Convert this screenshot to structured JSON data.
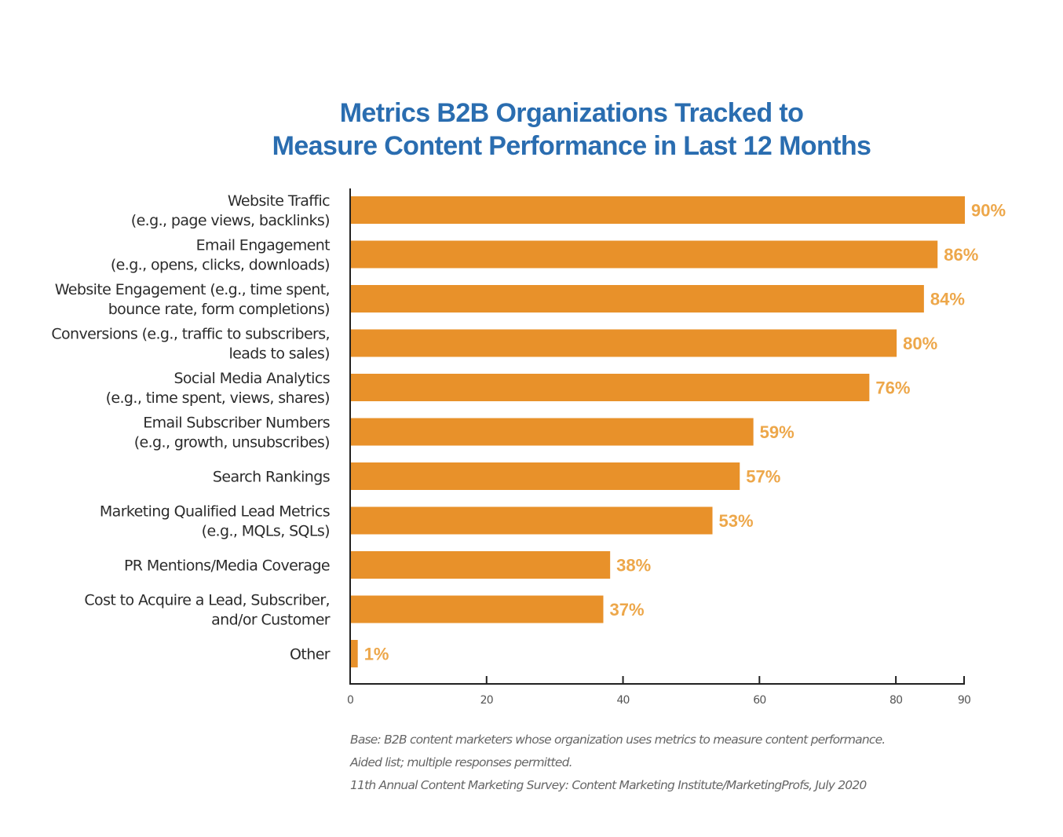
{
  "chart_data": {
    "type": "bar",
    "orientation": "horizontal",
    "title": [
      "Metrics B2B Organizations Tracked to",
      "Measure Content Performance in Last 12 Months"
    ],
    "categories": [
      [
        "Website Traffic",
        "(e.g., page views, backlinks)"
      ],
      [
        "Email Engagement",
        "(e.g., opens, clicks, downloads)"
      ],
      [
        "Website Engagement (e.g., time spent,",
        "bounce rate, form completions)"
      ],
      [
        "Conversions (e.g., traffic to subscribers,",
        "leads to sales)"
      ],
      [
        "Social Media Analytics",
        "(e.g., time spent, views, shares)"
      ],
      [
        "Email Subscriber Numbers",
        "(e.g., growth, unsubscribes)"
      ],
      [
        "Search Rankings"
      ],
      [
        "Marketing Qualified Lead Metrics",
        "(e.g., MQLs, SQLs)"
      ],
      [
        "PR Mentions/Media Coverage"
      ],
      [
        "Cost to Acquire a Lead, Subscriber,",
        "and/or Customer"
      ],
      [
        "Other"
      ]
    ],
    "values": [
      90,
      86,
      84,
      80,
      76,
      59,
      57,
      53,
      38,
      37,
      1
    ],
    "value_labels": [
      "90%",
      "86%",
      "84%",
      "80%",
      "76%",
      "59%",
      "57%",
      "53%",
      "38%",
      "37%",
      "1%"
    ],
    "xlabel": "",
    "ylabel": "",
    "xlim": [
      0,
      90
    ],
    "x_ticks": [
      0,
      20,
      40,
      60,
      80,
      90
    ],
    "x_tick_labels": [
      "0",
      "20",
      "40",
      "60",
      "80",
      "90"
    ],
    "grid": false,
    "legend": "none",
    "colors": {
      "bar": "#e8912a",
      "value_label": "#eda74a",
      "title": "#2a6db0",
      "axis": "#222222"
    },
    "notes": [
      "Base: B2B content marketers whose organization uses metrics to measure content performance.",
      "Aided list; multiple responses permitted.",
      "11th Annual Content Marketing Survey: Content Marketing Institute/MarketingProfs, July 2020"
    ]
  }
}
